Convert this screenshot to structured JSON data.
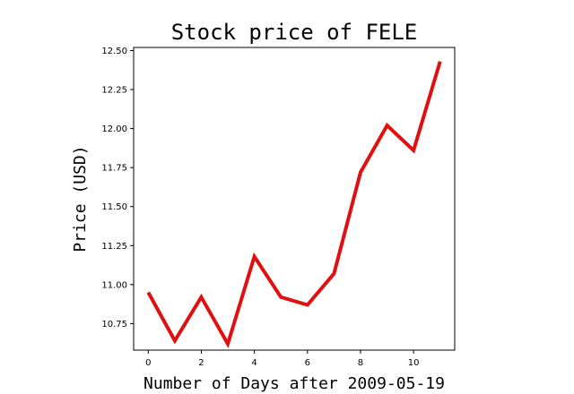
{
  "chart_data": {
    "type": "line",
    "title": "Stock price of FELE",
    "xlabel": "Number of Days after 2009-05-19",
    "ylabel": "Price (USD)",
    "xlim": [
      -0.55,
      11.55
    ],
    "ylim": [
      10.58,
      12.52
    ],
    "x_ticks": [
      "0",
      "2",
      "4",
      "6",
      "8",
      "10"
    ],
    "y_ticks": [
      "10.75",
      "11.00",
      "11.25",
      "11.50",
      "11.75",
      "12.00",
      "12.25",
      "12.50"
    ],
    "grid": false,
    "series": [
      {
        "color": "#e01010",
        "x": [
          0,
          1,
          2,
          3,
          4,
          5,
          6,
          7,
          8,
          9,
          10,
          11
        ],
        "y": [
          10.95,
          10.64,
          10.92,
          10.62,
          11.18,
          10.92,
          10.87,
          11.07,
          11.72,
          12.02,
          11.86,
          12.43
        ]
      }
    ]
  }
}
